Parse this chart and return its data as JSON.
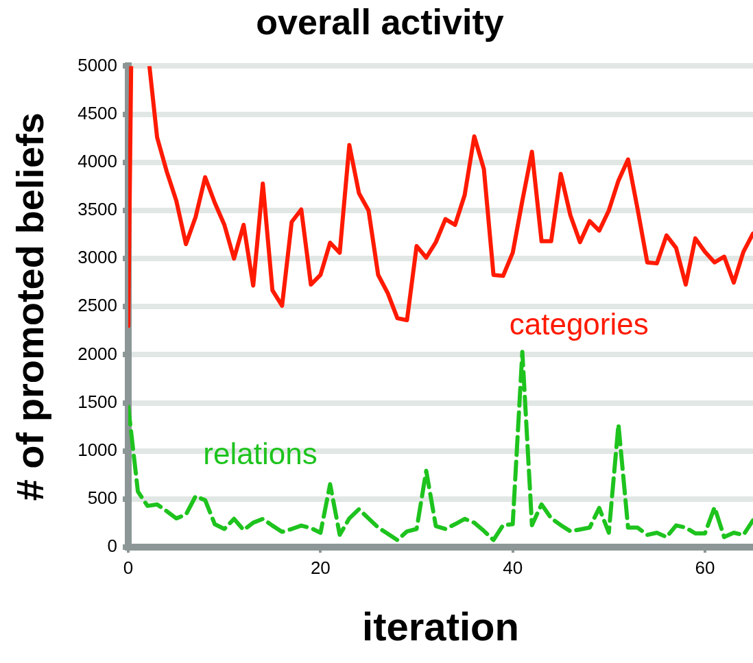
{
  "chart_data": {
    "type": "line",
    "title": "overall activity",
    "xlabel": "iteration",
    "ylabel": "# of promoted beliefs",
    "xlim": [
      0,
      65
    ],
    "xticks": [
      0,
      20,
      40,
      60
    ],
    "ylim": [
      0,
      5000
    ],
    "yticks": [
      0,
      500,
      1000,
      1500,
      2000,
      2500,
      3000,
      3500,
      4000,
      4500,
      5000
    ],
    "grid": "y",
    "legend": false,
    "marker": "none",
    "series": [
      {
        "name": "categories",
        "color": "#ff1a00",
        "line_style": "solid",
        "x": [
          0,
          0.3,
          1,
          2.2,
          3,
          4,
          5,
          6,
          7,
          8,
          9,
          10,
          11,
          12,
          13,
          14,
          15,
          16,
          17,
          18,
          19,
          20,
          21,
          22,
          23,
          24,
          25,
          26,
          27,
          28,
          29,
          30,
          31,
          32,
          33,
          34,
          35,
          36,
          37,
          38,
          39,
          40,
          41,
          42,
          43,
          44,
          45,
          46,
          47,
          48,
          49,
          50,
          51,
          52,
          53,
          54,
          55,
          56,
          57,
          58,
          59,
          60,
          61,
          62,
          63,
          64,
          65
        ],
        "values": [
          2300,
          5000,
          null,
          5000,
          4260,
          3905,
          3600,
          3150,
          3430,
          3845,
          3580,
          3350,
          3000,
          3350,
          2720,
          3780,
          2670,
          2510,
          3380,
          3510,
          2730,
          2830,
          3165,
          3060,
          4180,
          3680,
          3500,
          2830,
          2640,
          2380,
          2360,
          3130,
          3010,
          3170,
          3410,
          3350,
          3660,
          4270,
          3930,
          2830,
          2820,
          3060,
          3600,
          4110,
          3180,
          3180,
          3880,
          3450,
          3170,
          3390,
          3290,
          3500,
          3810,
          4030,
          3510,
          2960,
          2950,
          3240,
          3110,
          2730,
          3210,
          3070,
          2960,
          3020,
          2750,
          3070,
          3260
        ]
      },
      {
        "name": "relations",
        "color": "#1ec31e",
        "line_style": "dashed",
        "x": [
          0,
          1,
          2,
          3,
          4,
          5,
          6,
          7,
          8,
          9,
          10,
          11,
          12,
          13,
          14,
          15,
          16,
          17,
          18,
          19,
          20,
          21,
          22,
          23,
          24,
          25,
          26,
          27,
          28,
          29,
          30,
          31,
          32,
          33,
          34,
          35,
          36,
          37,
          38,
          39,
          40,
          41,
          42,
          43,
          44,
          45,
          46,
          47,
          48,
          49,
          50,
          51,
          52,
          53,
          54,
          55,
          56,
          57,
          58,
          59,
          60,
          61,
          62,
          63,
          64,
          65
        ],
        "values": [
          1460,
          580,
          430,
          445,
          375,
          300,
          340,
          530,
          490,
          240,
          190,
          295,
          180,
          255,
          295,
          225,
          160,
          190,
          225,
          200,
          150,
          655,
          130,
          300,
          395,
          300,
          205,
          140,
          75,
          165,
          190,
          795,
          220,
          190,
          240,
          295,
          255,
          170,
          75,
          230,
          240,
          2030,
          230,
          446,
          302,
          230,
          166,
          185,
          204,
          408,
          151,
          1276,
          204,
          204,
          128,
          151,
          106,
          227,
          204,
          144,
          144,
          415,
          106,
          151,
          128,
          280
        ]
      }
    ]
  }
}
